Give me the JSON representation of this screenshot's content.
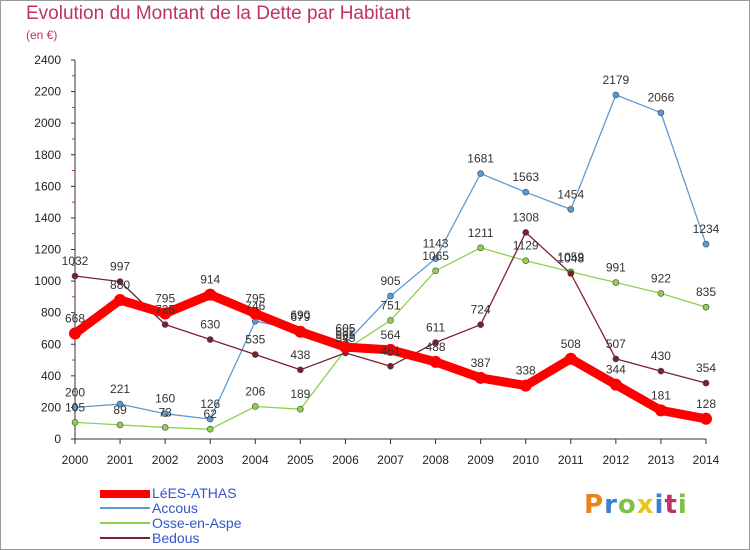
{
  "header": {
    "title": "Evolution du Montant de la Dette par Habitant",
    "subtitle": "(en €)"
  },
  "logo": {
    "text": "Proxiti",
    "colors": [
      "#e8831c",
      "#3a7fd1",
      "#7cc243",
      "#e8c51c",
      "#3a7fd1",
      "#c0306a",
      "#7cc243"
    ]
  },
  "chart_data": {
    "type": "line",
    "title": "Evolution du Montant de la Dette par Habitant",
    "ylabel": "(en €)",
    "xlabel": "",
    "x": [
      "2000",
      "2001",
      "2002",
      "2003",
      "2004",
      "2005",
      "2006",
      "2007",
      "2008",
      "2009",
      "2010",
      "2011",
      "2012",
      "2013",
      "2014"
    ],
    "ylim": [
      0,
      2400
    ],
    "yticks": [
      "0",
      "200",
      "400",
      "600",
      "800",
      "1000",
      "1200",
      "1400",
      "1600",
      "1800",
      "2000",
      "2200",
      "2400"
    ],
    "grid": false,
    "legend_position": "bottom-left",
    "series": [
      {
        "name": "LéES-ATHAS",
        "color": "#ff0000",
        "values": [
          668,
          880,
          795,
          914,
          795,
          679,
          582,
          564,
          488,
          387,
          338,
          508,
          344,
          181,
          128
        ],
        "labels": [
          "668",
          "880",
          "795",
          "914",
          "795",
          "679",
          "582",
          "564",
          "488",
          "387",
          "338",
          "508",
          "344",
          "181",
          "128"
        ]
      },
      {
        "name": "Accous",
        "color": "#5b9bd5",
        "values": [
          200,
          221,
          160,
          126,
          746,
          690,
          605,
          905,
          1143,
          1681,
          1563,
          1454,
          2179,
          2066,
          1234
        ],
        "labels": [
          "200",
          "221",
          "160",
          "126",
          "746",
          "690",
          "605",
          "905",
          "1143",
          "1681",
          "1563",
          "1454",
          "2179",
          "2066",
          "1234"
        ]
      },
      {
        "name": "Osse-en-Aspe",
        "color": "#8fd14f",
        "values": [
          105,
          89,
          73,
          62,
          206,
          189,
          565,
          751,
          1065,
          1211,
          1129,
          1059,
          991,
          922,
          835
        ],
        "labels": [
          "105",
          "89",
          "73",
          "62",
          "206",
          "189",
          "565",
          "751",
          "1065",
          "1211",
          "1129",
          "1059",
          "991",
          "922",
          "835"
        ]
      },
      {
        "name": "Bedous",
        "color": "#7b2030",
        "values": [
          1032,
          997,
          725,
          630,
          535,
          438,
          545,
          461,
          611,
          724,
          1308,
          1048,
          507,
          430,
          354
        ],
        "labels": [
          "1032",
          "997",
          "725",
          "630",
          "535",
          "438",
          "545",
          "461",
          "611",
          "724",
          "1308",
          "1048",
          "507",
          "430",
          "354"
        ]
      }
    ]
  }
}
